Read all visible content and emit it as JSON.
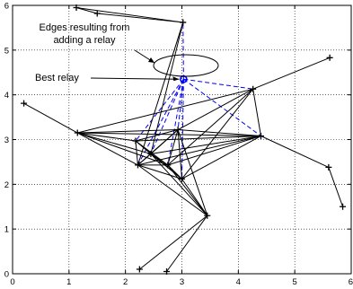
{
  "chart_data": {
    "type": "scatter",
    "title": "",
    "xlabel": "",
    "ylabel": "",
    "xlim": [
      0,
      6
    ],
    "ylim": [
      0,
      6
    ],
    "xticks": [
      "0",
      "1",
      "2",
      "3",
      "4",
      "5",
      "6"
    ],
    "yticks": [
      "0",
      "1",
      "2",
      "3",
      "4",
      "5",
      "6"
    ],
    "grid": true,
    "legend": "none",
    "nodes": [
      {
        "x": 1.13,
        "y": 5.95
      },
      {
        "x": 1.5,
        "y": 5.82
      },
      {
        "x": 3.02,
        "y": 5.62
      },
      {
        "x": 5.62,
        "y": 4.83
      },
      {
        "x": 4.26,
        "y": 4.13
      },
      {
        "x": 0.2,
        "y": 3.81
      },
      {
        "x": 1.15,
        "y": 3.15
      },
      {
        "x": 2.93,
        "y": 3.22
      },
      {
        "x": 4.4,
        "y": 3.08
      },
      {
        "x": 2.18,
        "y": 2.97
      },
      {
        "x": 2.45,
        "y": 2.68
      },
      {
        "x": 2.22,
        "y": 2.43
      },
      {
        "x": 2.75,
        "y": 2.43
      },
      {
        "x": 3.0,
        "y": 2.12
      },
      {
        "x": 5.6,
        "y": 2.38
      },
      {
        "x": 5.85,
        "y": 1.5
      },
      {
        "x": 3.45,
        "y": 1.3
      },
      {
        "x": 2.25,
        "y": 0.1
      },
      {
        "x": 2.73,
        "y": 0.05
      }
    ],
    "edges": [
      [
        0,
        1
      ],
      [
        0,
        2
      ],
      [
        1,
        2
      ],
      [
        2,
        10
      ],
      [
        2,
        11
      ],
      [
        3,
        4
      ],
      [
        4,
        8
      ],
      [
        4,
        6
      ],
      [
        4,
        12
      ],
      [
        4,
        13
      ],
      [
        4,
        7
      ],
      [
        5,
        6
      ],
      [
        6,
        9
      ],
      [
        6,
        10
      ],
      [
        6,
        7
      ],
      [
        6,
        8
      ],
      [
        6,
        11
      ],
      [
        6,
        12
      ],
      [
        7,
        8
      ],
      [
        7,
        9
      ],
      [
        7,
        10
      ],
      [
        7,
        11
      ],
      [
        7,
        12
      ],
      [
        7,
        13
      ],
      [
        8,
        9
      ],
      [
        8,
        10
      ],
      [
        8,
        11
      ],
      [
        8,
        12
      ],
      [
        8,
        13
      ],
      [
        9,
        10
      ],
      [
        9,
        11
      ],
      [
        9,
        12
      ],
      [
        9,
        13
      ],
      [
        10,
        11
      ],
      [
        10,
        12
      ],
      [
        10,
        13
      ],
      [
        10,
        16
      ],
      [
        11,
        12
      ],
      [
        11,
        13
      ],
      [
        11,
        16
      ],
      [
        12,
        13
      ],
      [
        12,
        16
      ],
      [
        13,
        16
      ],
      [
        7,
        16
      ],
      [
        8,
        14
      ],
      [
        14,
        15
      ],
      [
        16,
        17
      ],
      [
        16,
        18
      ]
    ],
    "relay": {
      "x": 3.03,
      "y": 4.35
    },
    "relay_edges": [
      2,
      4,
      7,
      8,
      9,
      10,
      11,
      12,
      13
    ],
    "annotations": {
      "edges_line1": "Edges resulting from",
      "edges_line2": "adding a relay",
      "best_relay": "Best relay"
    },
    "colors": {
      "edges": "#000000",
      "relay_edges": "#0000ff",
      "relay_marker": "#0000ff",
      "grid": "#000000"
    }
  }
}
